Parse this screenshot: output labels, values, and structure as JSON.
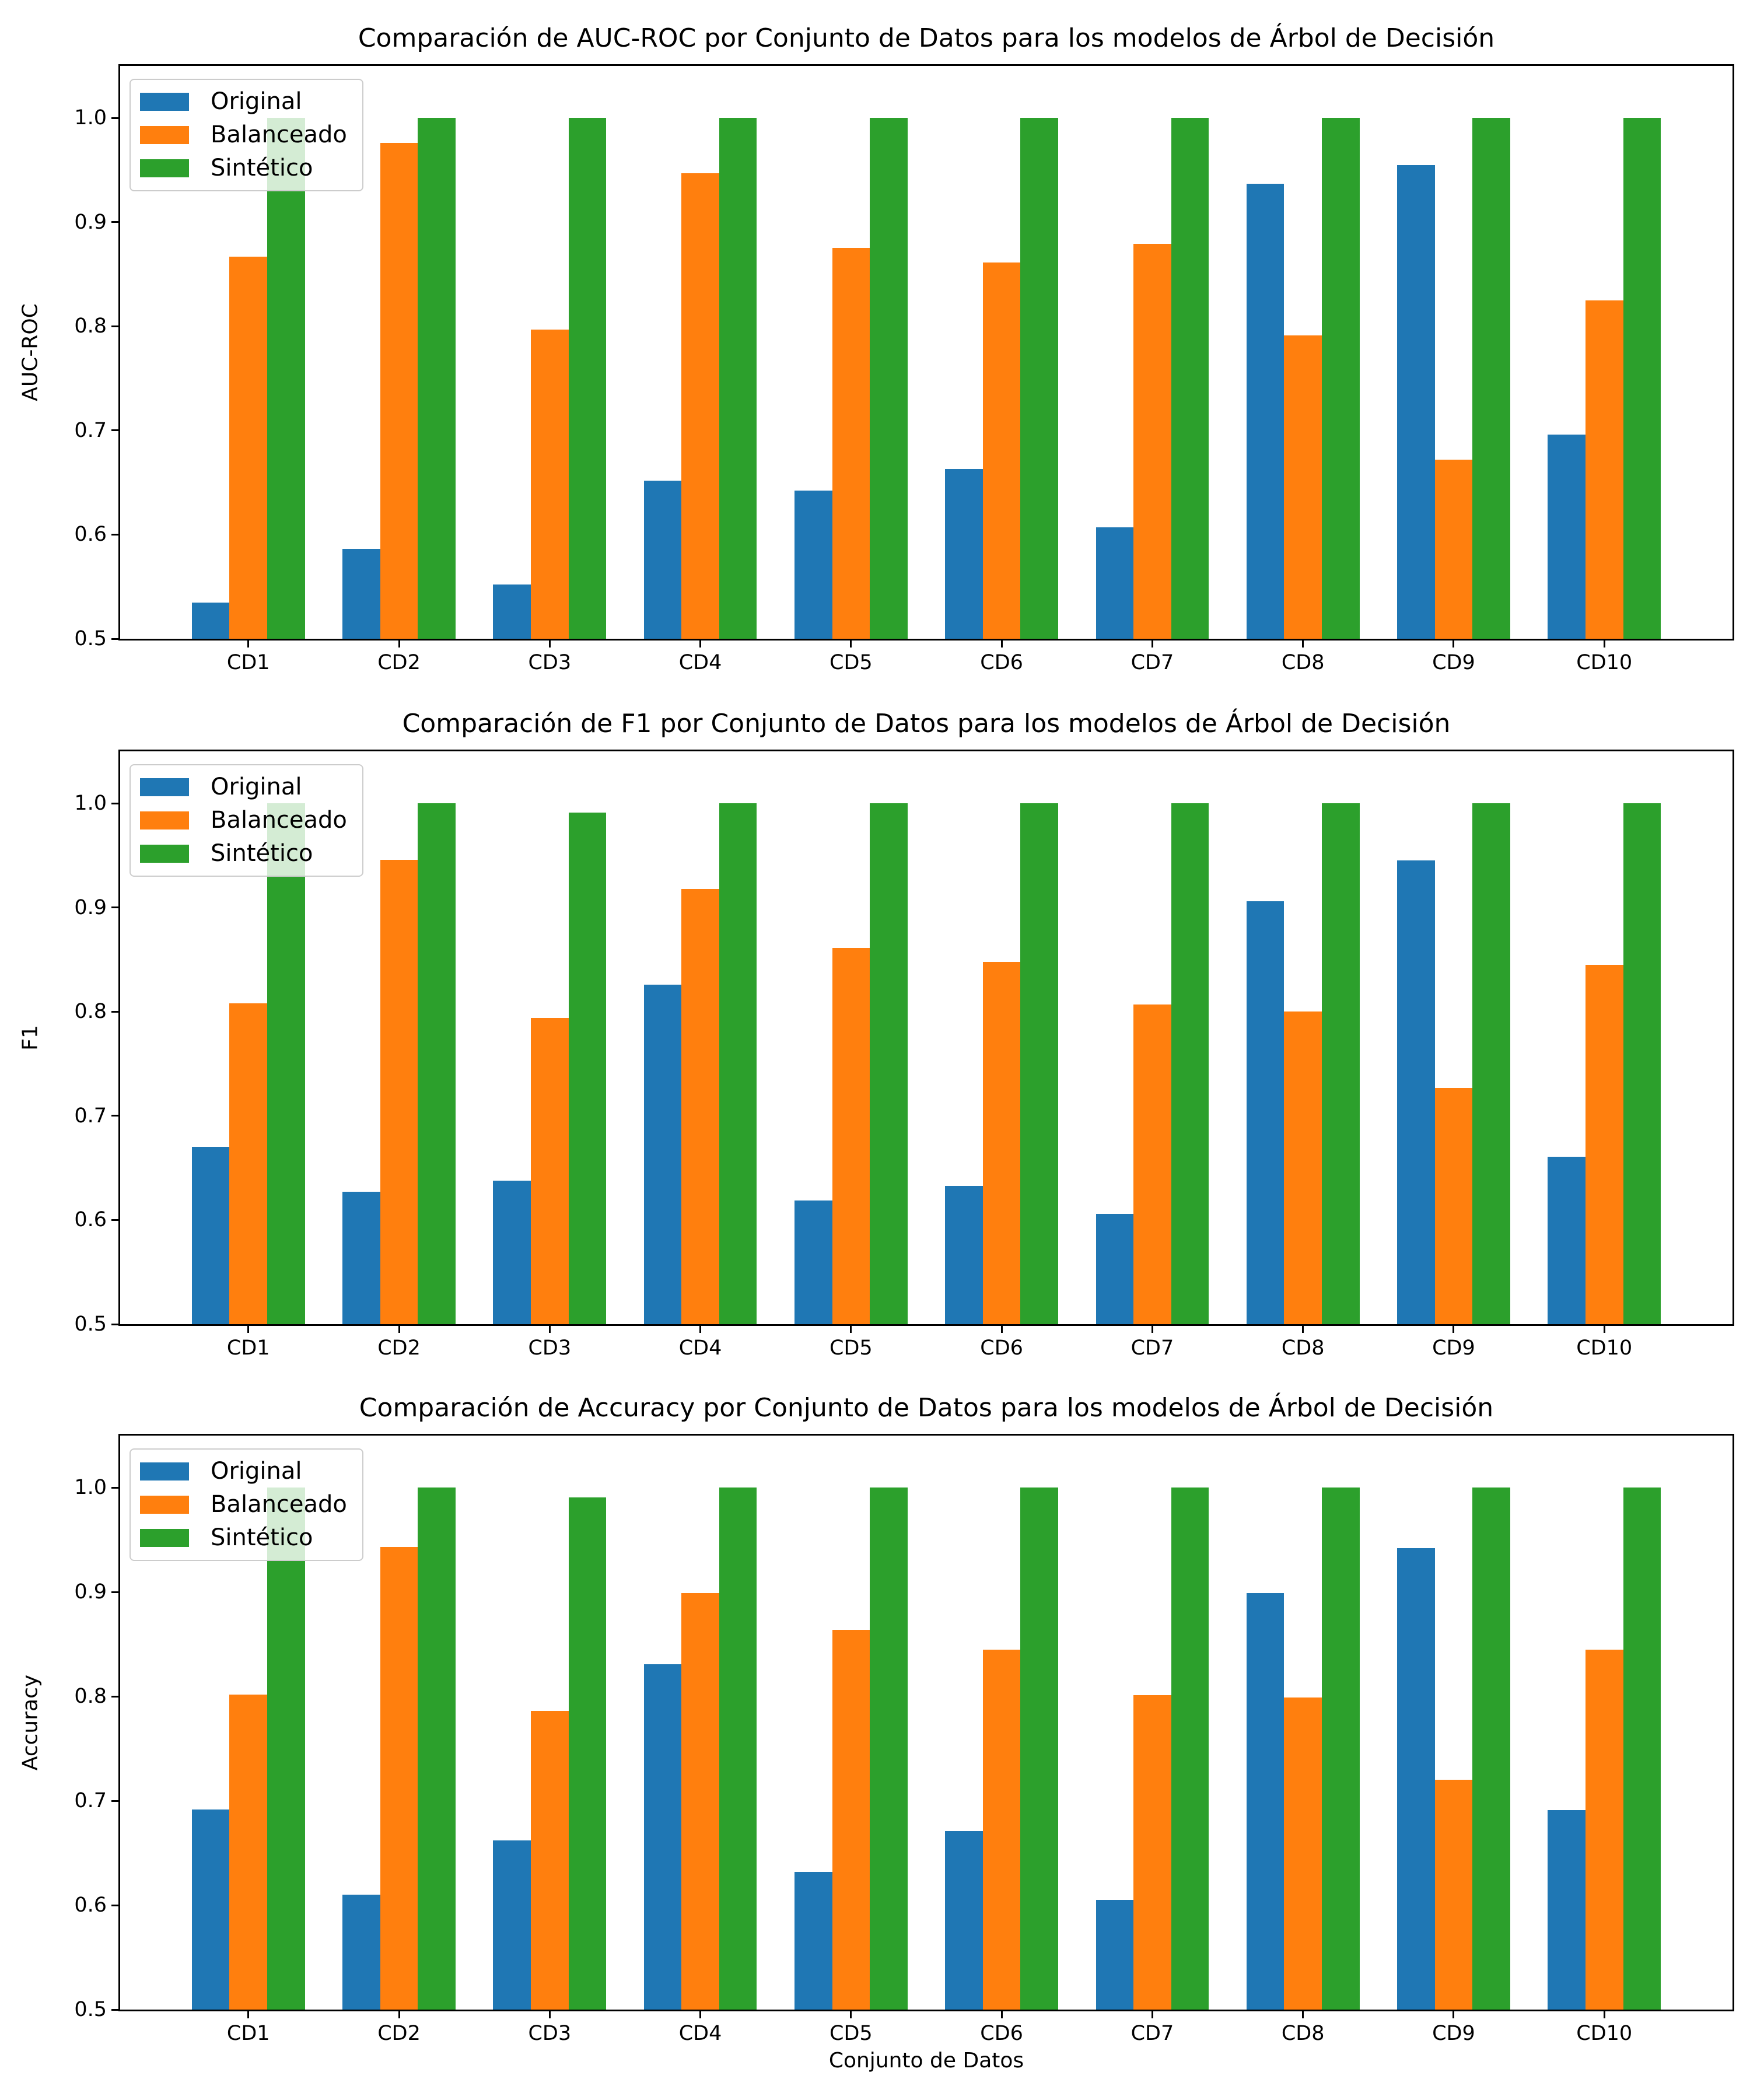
{
  "figure_title": "",
  "xlabel": "Conjunto de Datos",
  "legend": {
    "position": "upper left",
    "labels": [
      "Original",
      "Balanceado",
      "Sintético"
    ]
  },
  "colors": {
    "original": "#1f77b4",
    "balanceado": "#ff7f0e",
    "sintetico": "#2ca02c"
  },
  "chart_data": [
    {
      "type": "bar",
      "title": "Comparación de AUC-ROC por Conjunto de Datos para los modelos de Árbol de Decisión",
      "ylabel": "AUC-ROC",
      "xlabel": "",
      "categories": [
        "CD1",
        "CD2",
        "CD3",
        "CD4",
        "CD5",
        "CD6",
        "CD7",
        "CD8",
        "CD9",
        "CD10"
      ],
      "ylim": [
        0.5,
        1.05
      ],
      "yticks": [
        0.5,
        0.6,
        0.7,
        0.8,
        0.9,
        1.0
      ],
      "grid": false,
      "legend_position": "upper left",
      "series": [
        {
          "name": "Original",
          "color": "#1f77b4",
          "values": [
            0.535,
            0.586,
            0.552,
            0.652,
            0.642,
            0.663,
            0.607,
            0.937,
            0.955,
            0.696
          ]
        },
        {
          "name": "Balanceado",
          "color": "#ff7f0e",
          "values": [
            0.867,
            0.976,
            0.797,
            0.947,
            0.875,
            0.861,
            0.879,
            0.791,
            0.672,
            0.825
          ]
        },
        {
          "name": "Sintético",
          "color": "#2ca02c",
          "values": [
            1.0,
            1.0,
            1.0,
            1.0,
            1.0,
            1.0,
            1.0,
            1.0,
            1.0,
            1.0
          ]
        }
      ]
    },
    {
      "type": "bar",
      "title": "Comparación de F1 por Conjunto de Datos para los modelos de Árbol de Decisión",
      "ylabel": "F1",
      "xlabel": "",
      "categories": [
        "CD1",
        "CD2",
        "CD3",
        "CD4",
        "CD5",
        "CD6",
        "CD7",
        "CD8",
        "CD9",
        "CD10"
      ],
      "ylim": [
        0.5,
        1.05
      ],
      "yticks": [
        0.5,
        0.6,
        0.7,
        0.8,
        0.9,
        1.0
      ],
      "grid": false,
      "legend_position": "upper left",
      "series": [
        {
          "name": "Original",
          "color": "#1f77b4",
          "values": [
            0.67,
            0.627,
            0.638,
            0.826,
            0.619,
            0.633,
            0.606,
            0.906,
            0.945,
            0.661
          ]
        },
        {
          "name": "Balanceado",
          "color": "#ff7f0e",
          "values": [
            0.808,
            0.946,
            0.794,
            0.918,
            0.861,
            0.848,
            0.807,
            0.8,
            0.727,
            0.845
          ]
        },
        {
          "name": "Sintético",
          "color": "#2ca02c",
          "values": [
            1.0,
            1.0,
            0.991,
            1.0,
            1.0,
            1.0,
            1.0,
            1.0,
            1.0,
            1.0
          ]
        }
      ]
    },
    {
      "type": "bar",
      "title": "Comparación de Accuracy por Conjunto de Datos para los modelos de Árbol de Decisión",
      "ylabel": "Accuracy",
      "xlabel": "Conjunto de Datos",
      "categories": [
        "CD1",
        "CD2",
        "CD3",
        "CD4",
        "CD5",
        "CD6",
        "CD7",
        "CD8",
        "CD9",
        "CD10"
      ],
      "ylim": [
        0.5,
        1.05
      ],
      "yticks": [
        0.5,
        0.6,
        0.7,
        0.8,
        0.9,
        1.0
      ],
      "grid": false,
      "legend_position": "upper left",
      "series": [
        {
          "name": "Original",
          "color": "#1f77b4",
          "values": [
            0.692,
            0.61,
            0.662,
            0.831,
            0.632,
            0.671,
            0.605,
            0.899,
            0.942,
            0.691
          ]
        },
        {
          "name": "Balanceado",
          "color": "#ff7f0e",
          "values": [
            0.802,
            0.943,
            0.786,
            0.899,
            0.864,
            0.845,
            0.801,
            0.799,
            0.72,
            0.845
          ]
        },
        {
          "name": "Sintético",
          "color": "#2ca02c",
          "values": [
            1.0,
            1.0,
            0.991,
            1.0,
            1.0,
            1.0,
            1.0,
            1.0,
            1.0,
            1.0
          ]
        }
      ]
    }
  ]
}
